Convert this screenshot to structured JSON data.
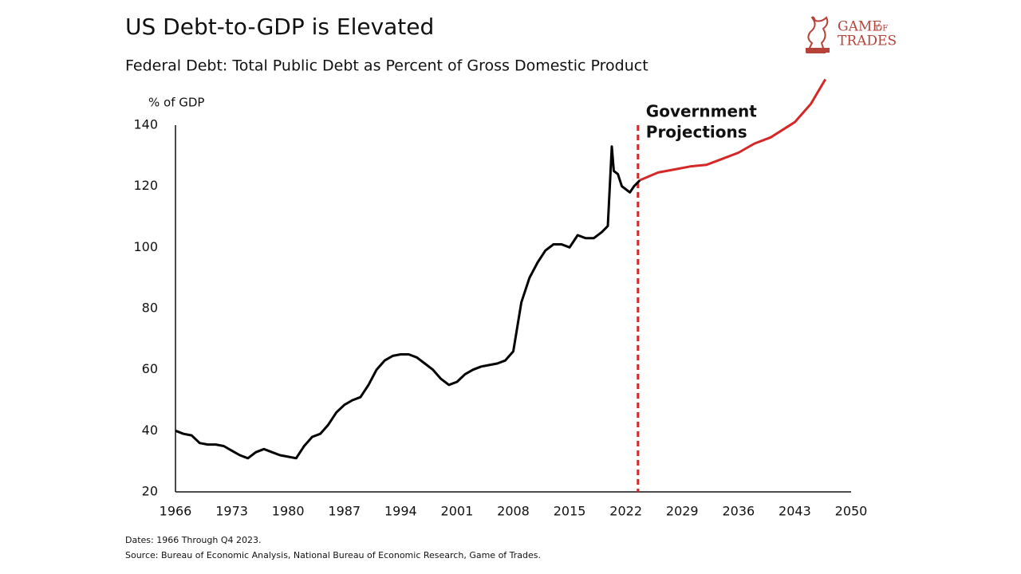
{
  "chart_data": {
    "type": "line",
    "title": "US Debt-to-GDP is Elevated",
    "subtitle": "Federal Debt: Total Public Debt as Percent of Gross Domestic Product",
    "y_label": "% of GDP",
    "notes": [
      "Dates: 1966 Through Q4 2023.",
      "Source: Bureau of Economic Analysis, National Bureau of Economic Research, Game of Trades."
    ],
    "logo": [
      "GAME",
      "OF",
      "TRADES"
    ],
    "annotation": {
      "text": [
        "Government",
        "Projections"
      ],
      "x": 2023.5,
      "color": "#d62728"
    },
    "xlim": [
      1966,
      2050
    ],
    "xticks": [
      1966,
      1973,
      1980,
      1987,
      1994,
      2001,
      2008,
      2015,
      2022,
      2029,
      2036,
      2043,
      2050
    ],
    "ylim": [
      20,
      140
    ],
    "yticks": [
      20,
      40,
      60,
      80,
      100,
      120,
      140
    ],
    "grid": false,
    "series": [
      {
        "color": "#000000",
        "x": [
          1966,
          1967,
          1968,
          1969,
          1970,
          1971,
          1972,
          1973,
          1974,
          1975,
          1976,
          1977,
          1978,
          1979,
          1980,
          1981,
          1982,
          1983,
          1984,
          1985,
          1986,
          1987,
          1988,
          1989,
          1990,
          1991,
          1992,
          1993,
          1994,
          1995,
          1996,
          1997,
          1998,
          1999,
          2000,
          2001,
          2002,
          2003,
          2004,
          2005,
          2006,
          2007,
          2008,
          2009,
          2010,
          2011,
          2012,
          2013,
          2014,
          2015,
          2016,
          2017,
          2018,
          2019,
          2019.75,
          2020.25,
          2020.5,
          2021,
          2021.5,
          2022,
          2022.5,
          2023,
          2023.75
        ],
        "values": [
          40,
          39,
          38.5,
          36,
          35.5,
          35.5,
          35,
          33.5,
          32,
          31,
          33,
          34,
          33,
          32,
          31.5,
          31,
          35,
          38,
          39,
          42,
          46,
          48.5,
          50,
          51,
          55,
          60,
          63,
          64.5,
          65,
          65,
          64,
          62,
          60,
          57,
          55,
          56,
          58.5,
          60,
          61,
          61.5,
          62,
          63,
          66,
          82,
          90,
          95,
          99,
          101,
          101,
          100,
          104,
          103,
          103,
          105,
          107,
          133,
          125,
          124,
          120,
          119,
          118,
          120,
          122
        ]
      },
      {
        "color": "#d62728",
        "x": [
          2023.75,
          2026,
          2028,
          2030,
          2032,
          2034,
          2036,
          2038,
          2040,
          2043,
          2045,
          2046.8
        ],
        "values": [
          122,
          124.5,
          125.5,
          126.5,
          127,
          129,
          131,
          134,
          136,
          141,
          147,
          155
        ]
      }
    ]
  }
}
